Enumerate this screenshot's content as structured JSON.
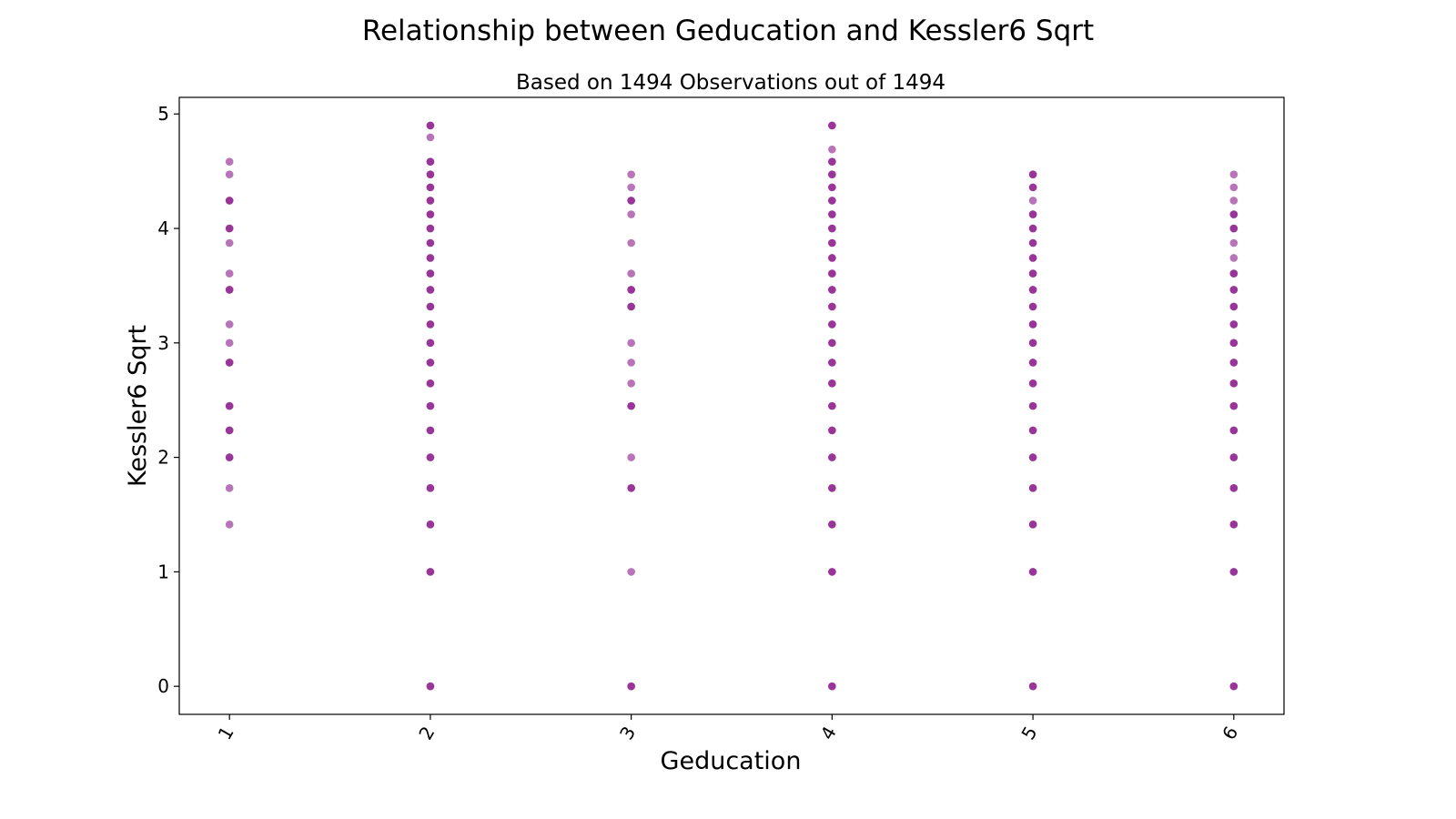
{
  "chart_data": {
    "type": "scatter",
    "title": "Relationship between Geducation and Kessler6 Sqrt",
    "subtitle": "Based on 1494 Observations out of 1494",
    "xlabel": "Geducation",
    "ylabel": "Kessler6 Sqrt",
    "x_ticks": [
      "1",
      "2",
      "3",
      "4",
      "5",
      "6"
    ],
    "y_ticks": [
      "0",
      "1",
      "2",
      "3",
      "4",
      "5"
    ],
    "xlim": [
      0.75,
      6.25
    ],
    "ylim": [
      -0.245,
      5.145
    ],
    "grid": false,
    "point_color": "#800080",
    "point_alpha": 0.55,
    "points": [
      {
        "x": 1,
        "ys": [
          1.414,
          1.732,
          2.0,
          2.236,
          2.449,
          2.828,
          3.0,
          3.162,
          3.464,
          3.606,
          3.873,
          4.0,
          4.243,
          4.472,
          4.583
        ],
        "dense": [
          2.0,
          2.236,
          2.449,
          2.828,
          3.464,
          4.0,
          4.243
        ]
      },
      {
        "x": 2,
        "ys": [
          0.0,
          1.0,
          1.414,
          1.732,
          2.0,
          2.236,
          2.449,
          2.646,
          2.828,
          3.0,
          3.162,
          3.317,
          3.464,
          3.606,
          3.742,
          3.873,
          4.0,
          4.123,
          4.243,
          4.359,
          4.472,
          4.583,
          4.796,
          4.899
        ],
        "dense": [
          0.0,
          1.0,
          1.414,
          1.732,
          2.0,
          2.236,
          2.449,
          2.646,
          2.828,
          3.0,
          3.162,
          3.317,
          3.464,
          3.606,
          3.742,
          3.873,
          4.0,
          4.123,
          4.243,
          4.359,
          4.472,
          4.583,
          4.899
        ]
      },
      {
        "x": 3,
        "ys": [
          0.0,
          1.0,
          1.732,
          2.0,
          2.449,
          2.646,
          2.828,
          3.0,
          3.317,
          3.464,
          3.606,
          3.873,
          4.123,
          4.243,
          4.359,
          4.472
        ],
        "dense": [
          0.0,
          1.732,
          2.449,
          3.317,
          3.464,
          4.243
        ]
      },
      {
        "x": 4,
        "ys": [
          0.0,
          1.0,
          1.414,
          1.732,
          2.0,
          2.236,
          2.449,
          2.646,
          2.828,
          3.0,
          3.162,
          3.317,
          3.464,
          3.606,
          3.742,
          3.873,
          4.0,
          4.123,
          4.243,
          4.359,
          4.472,
          4.583,
          4.69,
          4.899
        ],
        "dense": [
          0.0,
          1.0,
          1.414,
          1.732,
          2.0,
          2.236,
          2.449,
          2.646,
          2.828,
          3.0,
          3.162,
          3.317,
          3.464,
          3.606,
          3.742,
          3.873,
          4.0,
          4.123,
          4.243,
          4.359,
          4.472,
          4.583,
          4.899
        ]
      },
      {
        "x": 5,
        "ys": [
          0.0,
          1.0,
          1.414,
          1.732,
          2.0,
          2.236,
          2.449,
          2.646,
          2.828,
          3.0,
          3.162,
          3.317,
          3.464,
          3.606,
          3.742,
          3.873,
          4.0,
          4.123,
          4.243,
          4.359,
          4.472
        ],
        "dense": [
          0.0,
          1.0,
          1.414,
          1.732,
          2.0,
          2.236,
          2.449,
          2.646,
          2.828,
          3.0,
          3.162,
          3.317,
          3.464,
          3.606,
          3.742,
          3.873,
          4.0,
          4.123,
          4.359,
          4.472
        ]
      },
      {
        "x": 6,
        "ys": [
          0.0,
          1.0,
          1.414,
          1.732,
          2.0,
          2.236,
          2.449,
          2.646,
          2.828,
          3.0,
          3.162,
          3.317,
          3.464,
          3.606,
          3.742,
          3.873,
          4.0,
          4.123,
          4.243,
          4.359,
          4.472
        ],
        "dense": [
          0.0,
          1.0,
          1.414,
          1.732,
          2.0,
          2.236,
          2.449,
          2.646,
          2.828,
          3.0,
          3.162,
          3.317,
          3.464,
          3.606,
          4.0,
          4.123
        ]
      }
    ]
  }
}
